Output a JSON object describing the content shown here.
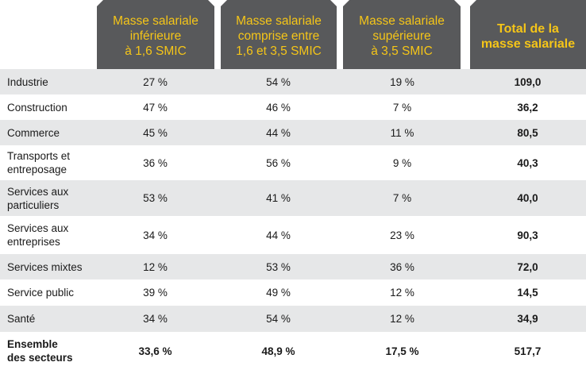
{
  "chart_data": {
    "type": "table",
    "columns": [
      "Masse salariale\ninférieure\nà 1,6 SMIC",
      "Masse salariale\ncomprise entre\n1,6 et 3,5 SMIC",
      "Masse salariale\nsupérieure\nà 3,5 SMIC",
      "Total de la\nmasse salariale"
    ],
    "rows": [
      {
        "label": "Industrie",
        "values": [
          "27 %",
          "54 %",
          "19 %",
          "109,0"
        ]
      },
      {
        "label": "Construction",
        "values": [
          "47 %",
          "46 %",
          "7 %",
          "36,2"
        ]
      },
      {
        "label": "Commerce",
        "values": [
          "45 %",
          "44 %",
          "11 %",
          "80,5"
        ]
      },
      {
        "label": "Transports et\nentreposage",
        "values": [
          "36 %",
          "56 %",
          "9 %",
          "40,3"
        ]
      },
      {
        "label": "Services aux\nparticuliers",
        "values": [
          "53 %",
          "41 %",
          "7 %",
          "40,0"
        ]
      },
      {
        "label": "Services aux\nentreprises",
        "values": [
          "34 %",
          "44 %",
          "23 %",
          "90,3"
        ]
      },
      {
        "label": "Services mixtes",
        "values": [
          "12 %",
          "53 %",
          "36 %",
          "72,0"
        ]
      },
      {
        "label": "Service public",
        "values": [
          "39 %",
          "49 %",
          "12 %",
          "14,5"
        ]
      },
      {
        "label": "Santé",
        "values": [
          "34 %",
          "54 %",
          "12 %",
          "34,9"
        ]
      },
      {
        "label": "Ensemble\ndes secteurs",
        "values": [
          "33,6 %",
          "48,9 %",
          "17,5 %",
          "517,7"
        ],
        "bold": true
      }
    ]
  },
  "colors": {
    "header_bg": "#58595b",
    "header_text": "#f5c518",
    "row_shade": "#e6e7e8"
  }
}
